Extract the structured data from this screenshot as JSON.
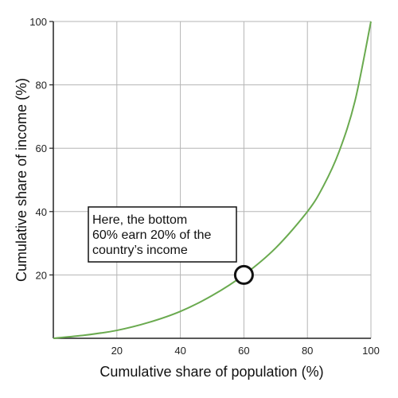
{
  "chart_data": {
    "type": "line",
    "xlabel": "Cumulative share of population (%)",
    "ylabel": "Cumulative share of income (%)",
    "xlim": [
      0,
      100
    ],
    "ylim": [
      0,
      100
    ],
    "x_ticks": [
      "20",
      "40",
      "60",
      "80",
      "100"
    ],
    "y_ticks": [
      "20",
      "40",
      "60",
      "80",
      "100"
    ],
    "grid": true,
    "series": [
      {
        "color": "#6aaa4f",
        "x": [
          0,
          10,
          20,
          30,
          40,
          50,
          60,
          70,
          80,
          85,
          90,
          95,
          100
        ],
        "y": [
          0,
          1,
          2.5,
          5,
          8.5,
          13.5,
          20,
          28.5,
          40,
          48,
          59,
          75,
          100
        ]
      }
    ],
    "highlight_point": {
      "x": 60,
      "y": 20
    },
    "annotation": {
      "lines": [
        "Here, the bottom",
        "60% earn 20% of the",
        "country’s income"
      ]
    }
  }
}
